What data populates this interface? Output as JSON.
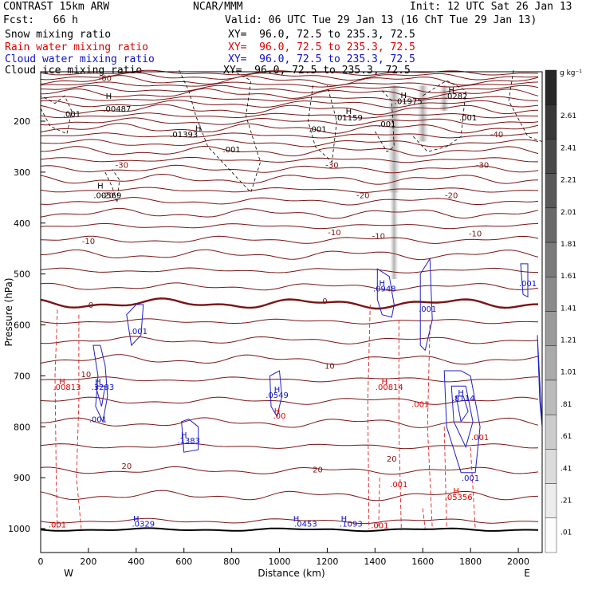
{
  "header": {
    "title": "CONTRAST 15km ARW",
    "center": "NCAR/MMM",
    "init": "Init: 12 UTC Sat 26 Jan 13",
    "fcst": "Fcst:   66 h",
    "valid": "Valid: 06 UTC Tue 29 Jan 13 (16 ChT Tue 29 Jan 13)"
  },
  "fields": [
    {
      "name": "Snow mixing ratio",
      "xy": "XY=  96.0, 72.5 to 235.3, 72.5",
      "color": "#000000"
    },
    {
      "name": "Rain water mixing ratio",
      "xy": "XY=  96.0, 72.5 to 235.3, 72.5",
      "color": "#e00000"
    },
    {
      "name": "Cloud water mixing ratio",
      "xy": "XY=  96.0, 72.5 to 235.3, 72.5",
      "color": "#1010cc"
    },
    {
      "name": "Cloud ice mixing ratio",
      "xy": "XY=  96.0, 72.5 to 235.3, 72.5",
      "color": "#000000"
    }
  ],
  "chart_data": {
    "type": "cross-section",
    "xlabel": "Distance (km)",
    "ylabel": "Pressure (hPa)",
    "xlim": [
      0,
      2100
    ],
    "ylim": [
      1050,
      100
    ],
    "x_ticks": [
      0,
      200,
      400,
      600,
      800,
      1000,
      1200,
      1400,
      1600,
      1800,
      2000
    ],
    "y_ticks": [
      200,
      300,
      400,
      500,
      600,
      700,
      800,
      900,
      1000
    ],
    "endpoints": {
      "west": "W",
      "east": "E"
    },
    "colorbar": {
      "unit": "g kg⁻¹",
      "ticks": [
        "2.61",
        "2.41",
        "2.21",
        "2.01",
        "1.81",
        "1.61",
        "1.41",
        "1.21",
        "1.01",
        ".81",
        ".61",
        ".41",
        ".21",
        ".01"
      ]
    },
    "temperature_labels": [
      {
        "label": "-60",
        "x": 270,
        "p": 115
      },
      {
        "label": "-30",
        "x": 340,
        "p": 285
      },
      {
        "label": "-30",
        "x": 1220,
        "p": 285
      },
      {
        "label": "-30",
        "x": 1850,
        "p": 285
      },
      {
        "label": "-40",
        "x": 1910,
        "p": 225
      },
      {
        "label": "-20",
        "x": 280,
        "p": 345
      },
      {
        "label": "-20",
        "x": 1350,
        "p": 345
      },
      {
        "label": "-20",
        "x": 1720,
        "p": 345
      },
      {
        "label": "-10",
        "x": 200,
        "p": 435
      },
      {
        "label": "-10",
        "x": 1230,
        "p": 418
      },
      {
        "label": "-10",
        "x": 1415,
        "p": 425
      },
      {
        "label": "-10",
        "x": 1820,
        "p": 420
      },
      {
        "label": "0",
        "x": 210,
        "p": 560
      },
      {
        "label": "0",
        "x": 1190,
        "p": 552
      },
      {
        "label": "10",
        "x": 1210,
        "p": 680
      },
      {
        "label": "10",
        "x": 190,
        "p": 696
      },
      {
        "label": "20",
        "x": 360,
        "p": 876
      },
      {
        "label": "20",
        "x": 1160,
        "p": 883
      },
      {
        "label": "20",
        "x": 1470,
        "p": 862
      }
    ],
    "isotherm_levels": [
      -90,
      -80,
      -70,
      -60,
      -50,
      -40,
      -30,
      -20,
      -10,
      0,
      10,
      20,
      30
    ],
    "snow_labels": [
      {
        "label": ".001",
        "x": 130,
        "p": 185
      },
      {
        "label": ".00487",
        "x": 320,
        "p": 175
      },
      {
        "label": ".01393",
        "x": 600,
        "p": 225
      },
      {
        "label": ".001",
        "x": 800,
        "p": 255
      },
      {
        "label": ".00569",
        "x": 280,
        "p": 345
      },
      {
        "label": ".001",
        "x": 1160,
        "p": 215
      },
      {
        "label": ".01159",
        "x": 1290,
        "p": 192
      },
      {
        "label": ".001",
        "x": 1450,
        "p": 205
      },
      {
        "label": ".01975",
        "x": 1540,
        "p": 160
      },
      {
        "label": ".0282",
        "x": 1740,
        "p": 150
      },
      {
        "label": ".001",
        "x": 1790,
        "p": 192
      }
    ],
    "rain_labels": [
      {
        "label": ".00813",
        "x": 110,
        "p": 721
      },
      {
        "label": ".00814",
        "x": 1460,
        "p": 721
      },
      {
        "label": ".001",
        "x": 1590,
        "p": 755
      },
      {
        "label": ".00",
        "x": 1000,
        "p": 778
      },
      {
        "label": ".001",
        "x": 1500,
        "p": 912
      },
      {
        "label": ".05356",
        "x": 1750,
        "p": 937
      },
      {
        "label": ".001",
        "x": 1840,
        "p": 820
      },
      {
        "label": ".001",
        "x": 70,
        "p": 991
      },
      {
        "label": ".001",
        "x": 1420,
        "p": 993
      }
    ],
    "cloud_labels": [
      {
        "label": ".3283",
        "x": 260,
        "p": 721
      },
      {
        "label": ".001",
        "x": 240,
        "p": 785
      },
      {
        "label": ".001",
        "x": 410,
        "p": 612
      },
      {
        "label": ".0549",
        "x": 990,
        "p": 737
      },
      {
        "label": ".1383",
        "x": 620,
        "p": 826
      },
      {
        "label": ".0948",
        "x": 1440,
        "p": 528
      },
      {
        "label": ".001",
        "x": 1620,
        "p": 568
      },
      {
        "label": ".001",
        "x": 2040,
        "p": 518
      },
      {
        "label": ".8114",
        "x": 1770,
        "p": 743
      },
      {
        "label": ".001",
        "x": 1800,
        "p": 900
      },
      {
        "label": ".0329",
        "x": 430,
        "p": 990
      },
      {
        "label": ".0453",
        "x": 1110,
        "p": 990
      },
      {
        "label": ".1093",
        "x": 1300,
        "p": 990
      }
    ],
    "highs": [
      {
        "x": 285,
        "p": 150,
        "field": "snow"
      },
      {
        "x": 660,
        "p": 213,
        "field": "snow"
      },
      {
        "x": 250,
        "p": 326,
        "field": "snow"
      },
      {
        "x": 1290,
        "p": 180,
        "field": "snow"
      },
      {
        "x": 1520,
        "p": 148,
        "field": "snow"
      },
      {
        "x": 1720,
        "p": 138,
        "field": "snow"
      },
      {
        "x": 90,
        "p": 710,
        "field": "rain"
      },
      {
        "x": 1440,
        "p": 710,
        "field": "rain"
      },
      {
        "x": 990,
        "p": 768,
        "field": "rain"
      },
      {
        "x": 1740,
        "p": 925,
        "field": "rain"
      },
      {
        "x": 240,
        "p": 710,
        "field": "cloud"
      },
      {
        "x": 990,
        "p": 726,
        "field": "cloud"
      },
      {
        "x": 600,
        "p": 815,
        "field": "cloud"
      },
      {
        "x": 1430,
        "p": 517,
        "field": "cloud"
      },
      {
        "x": 1760,
        "p": 732,
        "field": "cloud"
      },
      {
        "x": 400,
        "p": 980,
        "field": "cloud"
      },
      {
        "x": 1070,
        "p": 980,
        "field": "cloud"
      },
      {
        "x": 1270,
        "p": 980,
        "field": "cloud"
      }
    ]
  }
}
